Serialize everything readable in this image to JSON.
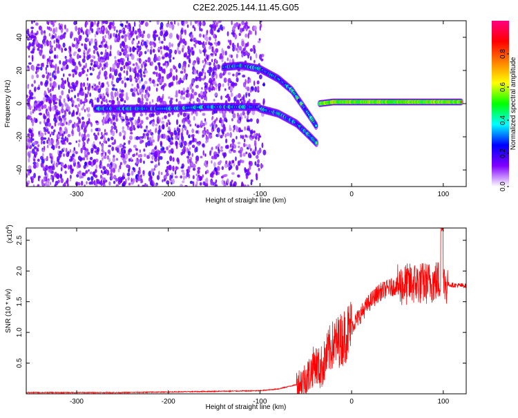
{
  "title": "C2E2.2025.144.11.45.G05",
  "chart_data": [
    {
      "type": "heatmap",
      "xlabel": "Height of straight line (km)",
      "ylabel": "Frequency (Hz)",
      "xlim": [
        -355,
        125
      ],
      "ylim": [
        -50,
        50
      ],
      "xticks": [
        -300,
        -200,
        -100,
        0,
        100
      ],
      "yticks": [
        -40,
        -20,
        0,
        20,
        40
      ],
      "colorbar": {
        "label": "Normalized spectral amplitude",
        "range": [
          0,
          1
        ],
        "ticks": [
          "0.0",
          "0.2",
          "0.4",
          "0.6",
          "0.8"
        ],
        "colors": [
          "#ffffff",
          "#8000ff",
          "#0000ff",
          "#00ffff",
          "#00ff00",
          "#ffff00",
          "#ff8000",
          "#ff0000",
          "#ff0080"
        ]
      },
      "ridges": [
        {
          "x": [
            -280,
            -240,
            -200,
            -160,
            -120,
            -100
          ],
          "y": [
            -3,
            -3,
            -3,
            -2,
            -2,
            -2
          ]
        },
        {
          "x": [
            -100,
            -80,
            -60,
            -45,
            -38
          ],
          "y": [
            -3,
            -6,
            -12,
            -20,
            -24
          ]
        },
        {
          "x": [
            -140,
            -120,
            -100,
            -80,
            -65,
            -55,
            -45,
            -38
          ],
          "y": [
            22,
            23,
            21,
            15,
            8,
            0,
            -8,
            -14
          ]
        },
        {
          "x": [
            -35,
            -20,
            0,
            40,
            80,
            120
          ],
          "y": [
            0,
            1,
            1,
            1,
            1,
            1
          ]
        }
      ]
    },
    {
      "type": "line",
      "xlabel": "Height of straight line (km)",
      "ylabel": "SNR (10 * v/v)",
      "multiplier": "(x10",
      "multiplier_exp": "4",
      "xlim": [
        -355,
        125
      ],
      "ylim": [
        0,
        2.7
      ],
      "xticks": [
        -300,
        -200,
        -100,
        0,
        100
      ],
      "yticks": [
        "0.5",
        "1.0",
        "1.5",
        "2.0",
        "2.5"
      ],
      "series": [
        {
          "color": "#ff0000",
          "x": [
            -355,
            -300,
            -250,
            -200,
            -150,
            -100,
            -80,
            -60,
            -50,
            -45,
            -40,
            -35,
            -30,
            -25,
            -20,
            -15,
            -10,
            -5,
            0,
            10,
            20,
            30,
            40,
            50,
            60,
            70,
            80,
            90,
            95,
            100,
            110,
            125
          ],
          "y": [
            0.02,
            0.02,
            0.02,
            0.03,
            0.04,
            0.05,
            0.08,
            0.15,
            0.25,
            0.35,
            0.5,
            0.4,
            0.5,
            0.7,
            0.8,
            0.85,
            0.9,
            1.0,
            1.1,
            1.3,
            1.5,
            1.65,
            1.72,
            1.76,
            1.78,
            1.8,
            1.8,
            1.82,
            1.85,
            1.8,
            1.77,
            1.76
          ]
        }
      ]
    }
  ]
}
